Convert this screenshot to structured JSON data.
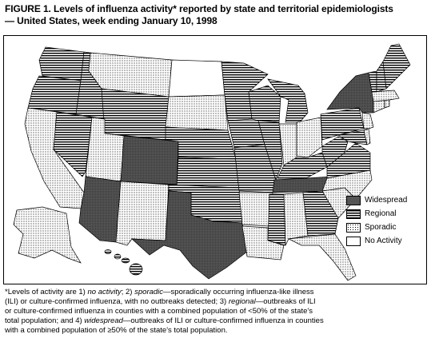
{
  "title": {
    "line1": "FIGURE 1. Levels of influenza activity* reported by state and territorial epidemiologists",
    "line2": "— United States, week ending January 10, 1998"
  },
  "legend": {
    "widespread": "Widespread",
    "regional": "Regional",
    "sporadic": "Sporadic",
    "no_activity": "No Activity"
  },
  "colors": {
    "widespread": "#555555",
    "regional_stripe": "#000000",
    "sporadic_dot": "#000000",
    "no_activity": "#ffffff",
    "border": "#000000"
  },
  "states": {
    "widespread": [
      "Arizona",
      "Colorado",
      "Texas",
      "Tennessee",
      "New York"
    ],
    "regional": [
      "Washington",
      "Oregon",
      "Idaho",
      "Wyoming",
      "Nebraska",
      "Kansas",
      "Oklahoma",
      "Missouri",
      "Illinois",
      "Michigan",
      "Minnesota",
      "Iowa",
      "Kentucky",
      "West Virginia",
      "Virginia",
      "Maryland",
      "Pennsylvania",
      "Vermont",
      "New Hampshire",
      "Maine",
      "Mississippi",
      "Nevada",
      "Georgia",
      "Hawaii",
      "Wisconsin"
    ],
    "sporadic": [
      "California",
      "Montana",
      "Utah",
      "New Mexico",
      "South Dakota",
      "Louisiana",
      "Arkansas",
      "Alabama",
      "Florida",
      "South Carolina",
      "North Carolina",
      "Indiana",
      "Ohio",
      "New Jersey",
      "Connecticut",
      "Massachusetts",
      "Rhode Island",
      "Delaware",
      "Alaska"
    ],
    "no_activity": [
      "North Dakota"
    ]
  },
  "footnote": {
    "line1_a": "*Levels of activity are 1) ",
    "no_activity": "no activity",
    "line1_b": "; 2) ",
    "sporadic": "sporadic",
    "line1_c": "—sporadically occurring influenza-like illness",
    "line2_a": "(ILI) or culture-confirmed influenza, with no outbreaks detected; 3) ",
    "regional": "regional",
    "line2_b": "—outbreaks of ILI",
    "line3": "or culture-confirmed influenza in counties with a combined population of <50% of the state's",
    "line4_a": "total population; and 4) ",
    "widespread": "widespread",
    "line4_b": "—outbreaks of ILI or culture-confirmed influenza in counties",
    "line5": "with a combined population of ≥50% of the state's total population."
  }
}
